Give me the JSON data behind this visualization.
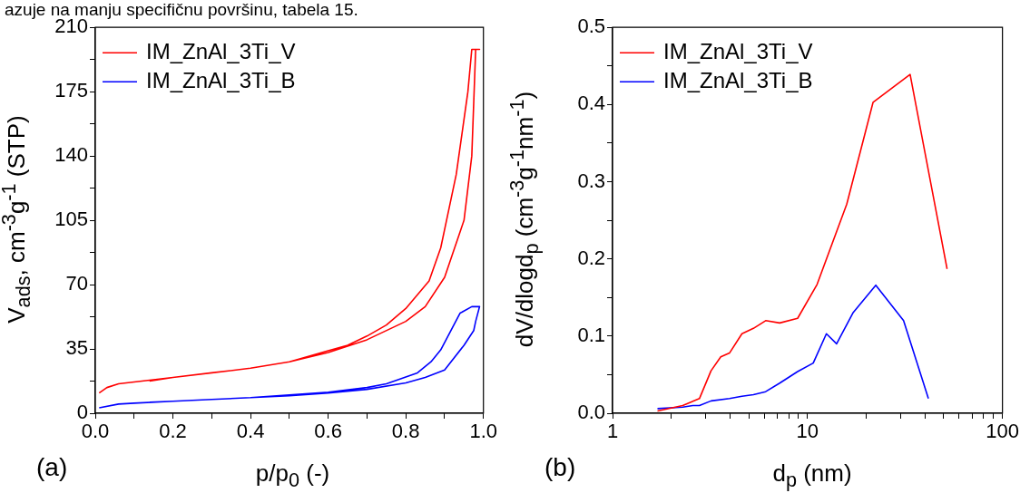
{
  "chart_data": [
    {
      "type": "line",
      "xlabel": "p/p$_{0}$ (-)",
      "ylabel": "V$_{ads}$, cm$^{-3}$g$^{-1}$ (STP)",
      "xlim": [
        0,
        1
      ],
      "ylim": [
        0,
        210
      ],
      "xticks": [
        {
          "value": 0,
          "label": "0.0"
        },
        {
          "value": 0.1,
          "label": null
        },
        {
          "value": 0.2,
          "label": "0.2"
        },
        {
          "value": 0.3,
          "label": null
        },
        {
          "value": 0.4,
          "label": "0.4"
        },
        {
          "value": 0.5,
          "label": null
        },
        {
          "value": 0.6,
          "label": "0.6"
        },
        {
          "value": 0.7,
          "label": null
        },
        {
          "value": 0.8,
          "label": "0.8"
        },
        {
          "value": 0.9,
          "label": null
        },
        {
          "value": 1,
          "label": "1.0"
        }
      ],
      "yticks": [
        0,
        {
          "value": 17.5,
          "label": null
        },
        35,
        {
          "value": 52.5,
          "label": null
        },
        70,
        {
          "value": 87.5,
          "label": null
        },
        105,
        {
          "value": 122.5,
          "label": null
        },
        140,
        {
          "value": 157.5,
          "label": null
        },
        175,
        {
          "value": 192.5,
          "label": null
        },
        210
      ],
      "grid": false,
      "legend": "top left",
      "marker": "none",
      "line_style": "solid",
      "annotations": [
        "(a)",
        "azuje na manju specifičnu površinu, tabela 15."
      ],
      "series": [
        {
          "name": "IM_ZnAl_3Ti_V",
          "color": "#ff0000",
          "x": [
            0.01,
            0.03,
            0.06,
            0.1,
            0.2,
            0.3,
            0.4,
            0.5,
            0.6,
            0.7,
            0.8,
            0.85,
            0.9,
            0.95,
            0.97,
            0.98,
            0.99,
            0.97,
            0.96,
            0.93,
            0.89,
            0.86,
            0.8,
            0.75,
            0.7,
            0.65,
            0.6,
            0.5,
            0.4,
            0.3,
            0.2,
            0.14
          ],
          "values": [
            11,
            14,
            16,
            17,
            19.5,
            22,
            24.5,
            28,
            33,
            40,
            50,
            58,
            74,
            105,
            140,
            198,
            198,
            198,
            175,
            130,
            90,
            72,
            57,
            48,
            42,
            37,
            34,
            28,
            24.5,
            22,
            19.5,
            17.5
          ]
        },
        {
          "name": "IM_ZnAl_3Ti_B",
          "color": "#0000ff",
          "x": [
            0.01,
            0.06,
            0.1,
            0.2,
            0.3,
            0.4,
            0.5,
            0.6,
            0.7,
            0.8,
            0.85,
            0.9,
            0.95,
            0.975,
            0.98,
            0.99,
            0.97,
            0.94,
            0.89,
            0.865,
            0.83,
            0.79,
            0.75,
            0.7,
            0.6,
            0.5,
            0.4,
            0.3,
            0.2,
            0.14
          ],
          "values": [
            3,
            5,
            5.5,
            6.5,
            7.5,
            8.5,
            9.5,
            11,
            13,
            16.5,
            19.5,
            23.5,
            37,
            45,
            50,
            58,
            58,
            54.5,
            34.5,
            28,
            22,
            19,
            16,
            14,
            11.5,
            10,
            8.5,
            7.5,
            6.5,
            6
          ]
        }
      ]
    },
    {
      "type": "line",
      "xlabel": "d$_{p}$ (nm)",
      "ylabel": "dV/dlogd$_{p}$ (cm$^{-3}$g$^{-1}$nm$^{-1}$)",
      "log": "x",
      "xlim": [
        1,
        100
      ],
      "ylim": [
        0,
        0.5
      ],
      "xticks": [
        1,
        {
          "value": 2,
          "label": null
        },
        {
          "value": 3,
          "label": null
        },
        {
          "value": 4,
          "label": null
        },
        {
          "value": 5,
          "label": null
        },
        {
          "value": 6,
          "label": null
        },
        {
          "value": 7,
          "label": null
        },
        {
          "value": 8,
          "label": null
        },
        {
          "value": 9,
          "label": null
        },
        10,
        {
          "value": 20,
          "label": null
        },
        {
          "value": 30,
          "label": null
        },
        {
          "value": 40,
          "label": null
        },
        {
          "value": 50,
          "label": null
        },
        {
          "value": 60,
          "label": null
        },
        {
          "value": 70,
          "label": null
        },
        {
          "value": 80,
          "label": null
        },
        {
          "value": 90,
          "label": null
        },
        100
      ],
      "yticks": [
        {
          "value": 0,
          "label": "0.0"
        },
        {
          "value": 0.05,
          "label": null
        },
        0.1,
        {
          "value": 0.15,
          "label": null
        },
        0.2,
        {
          "value": 0.25,
          "label": null
        },
        0.3,
        {
          "value": 0.35,
          "label": null
        },
        0.4,
        {
          "value": 0.45,
          "label": null
        },
        0.5
      ],
      "grid": false,
      "legend": "top left",
      "marker": "none",
      "line_style": "solid",
      "annotations": [
        "(b)"
      ],
      "series": [
        {
          "name": "IM_ZnAl_3Ti_V",
          "color": "#ff0000",
          "x": [
            1.7,
            2.29,
            2.79,
            3.2,
            3.59,
            3.98,
            4.61,
            5.28,
            6.1,
            7.2,
            8.9,
            11.2,
            15.9,
            21.7,
            33.6,
            52
          ],
          "values": [
            0.003,
            0.01,
            0.019,
            0.055,
            0.073,
            0.078,
            0.103,
            0.11,
            0.12,
            0.117,
            0.123,
            0.167,
            0.271,
            0.403,
            0.439,
            0.187
          ]
        },
        {
          "name": "IM_ZnAl_3Ti_B",
          "color": "#0000ff",
          "x": [
            1.7,
            2.29,
            2.58,
            2.79,
            3.2,
            3.98,
            4.61,
            5.28,
            6.1,
            7.2,
            8.9,
            10.7,
            12.5,
            14.1,
            17.1,
            22.4,
            31.1,
            41.7
          ],
          "values": [
            0.006,
            0.008,
            0.01,
            0.01,
            0.016,
            0.019,
            0.022,
            0.024,
            0.028,
            0.039,
            0.054,
            0.065,
            0.103,
            0.09,
            0.13,
            0.166,
            0.12,
            0.019
          ]
        }
      ]
    }
  ]
}
